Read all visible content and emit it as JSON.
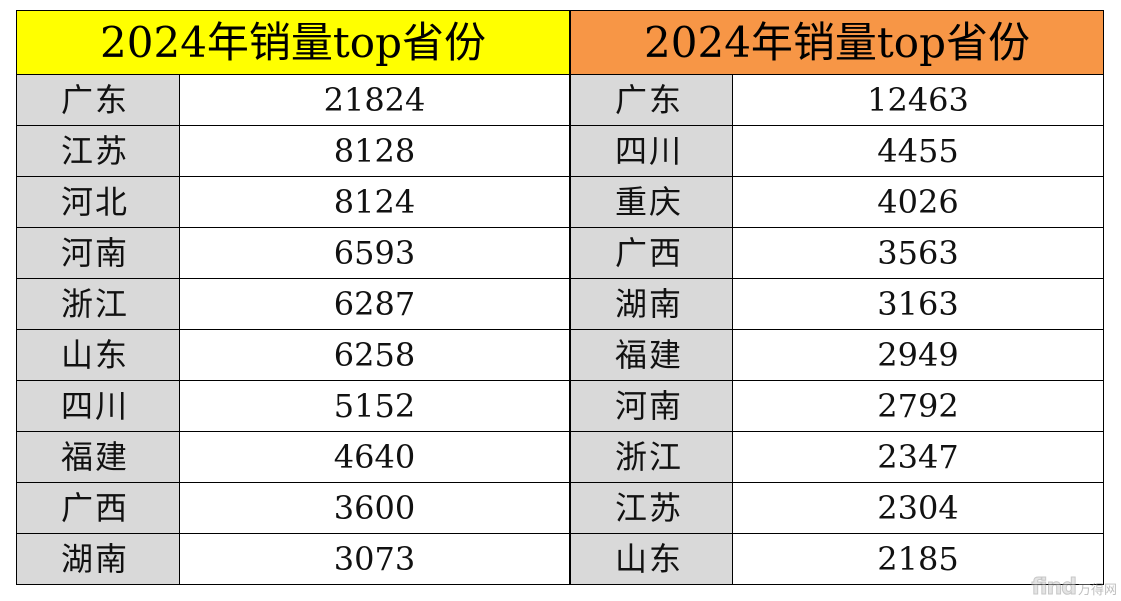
{
  "left_table": {
    "header": "2024年销量top省份",
    "rows": [
      {
        "province": "广东",
        "value": "21824"
      },
      {
        "province": "江苏",
        "value": "8128"
      },
      {
        "province": "河北",
        "value": "8124"
      },
      {
        "province": "河南",
        "value": "6593"
      },
      {
        "province": "浙江",
        "value": "6287"
      },
      {
        "province": "山东",
        "value": "6258"
      },
      {
        "province": "四川",
        "value": "5152"
      },
      {
        "province": "福建",
        "value": "4640"
      },
      {
        "province": "广西",
        "value": "3600"
      },
      {
        "province": "湖南",
        "value": "3073"
      }
    ],
    "header_color": "#ffff00"
  },
  "right_table": {
    "header": "2024年销量top省份",
    "rows": [
      {
        "province": "广东",
        "value": "12463"
      },
      {
        "province": "四川",
        "value": "4455"
      },
      {
        "province": "重庆",
        "value": "4026"
      },
      {
        "province": "广西",
        "value": "3563"
      },
      {
        "province": "湖南",
        "value": "3163"
      },
      {
        "province": "福建",
        "value": "2949"
      },
      {
        "province": "河南",
        "value": "2792"
      },
      {
        "province": "浙江",
        "value": "2347"
      },
      {
        "province": "江苏",
        "value": "2304"
      },
      {
        "province": "山东",
        "value": "2185"
      }
    ],
    "header_color": "#f79646"
  },
  "watermark": {
    "logo": "find",
    "brand": "万得网"
  },
  "colors": {
    "province_cell_bg": "#d9d9d9",
    "value_cell_bg": "#ffffff",
    "border": "#000000"
  }
}
